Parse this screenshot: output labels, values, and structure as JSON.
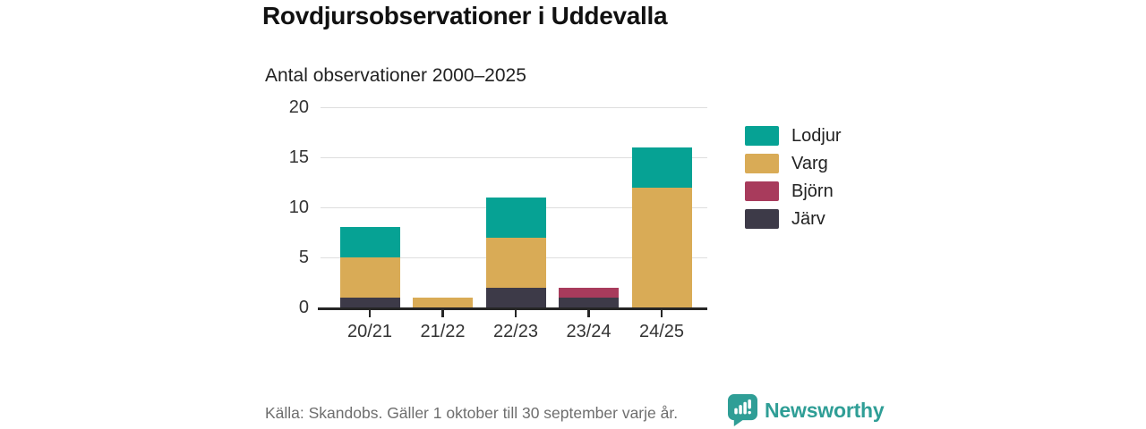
{
  "header": {
    "title": "Rovdjursobservationer i Uddevalla",
    "subtitle": "Antal observationer 2000–2025"
  },
  "footer": {
    "source": "Källa: Skandobs. Gäller 1 oktober till 30 september varje år.",
    "brand": "Newsworthy",
    "brand_color": "#2f9e96",
    "logo_icon": "bar-chart-speech-bubble"
  },
  "chart_data": {
    "type": "bar",
    "stacked": true,
    "title": "Rovdjursobservationer i Uddevalla",
    "subtitle": "Antal observationer 2000–2025",
    "categories": [
      "20/21",
      "21/22",
      "22/23",
      "23/24",
      "24/25"
    ],
    "series": [
      {
        "name": "Järv",
        "color": "#3d3a48",
        "values": [
          1,
          0,
          2,
          1,
          0
        ]
      },
      {
        "name": "Björn",
        "color": "#a83b5c",
        "values": [
          0,
          0,
          0,
          1,
          0
        ]
      },
      {
        "name": "Varg",
        "color": "#d9ab56",
        "values": [
          4,
          1,
          5,
          0,
          12
        ]
      },
      {
        "name": "Lodjur",
        "color": "#06a294",
        "values": [
          3,
          0,
          4,
          0,
          4
        ]
      }
    ],
    "stack_order_bottom_to_top": [
      "Järv",
      "Björn",
      "Varg",
      "Lodjur"
    ],
    "totals": [
      8,
      1,
      11,
      2,
      16
    ],
    "legend": [
      "Lodjur",
      "Varg",
      "Björn",
      "Järv"
    ],
    "legend_position": "right",
    "xlabel": "",
    "ylabel": "",
    "yticks": [
      0,
      5,
      10,
      15,
      20
    ],
    "ylim": [
      0,
      20
    ],
    "grid": "horizontal",
    "grid_color": "#dedede",
    "axis_color": "#262626"
  }
}
